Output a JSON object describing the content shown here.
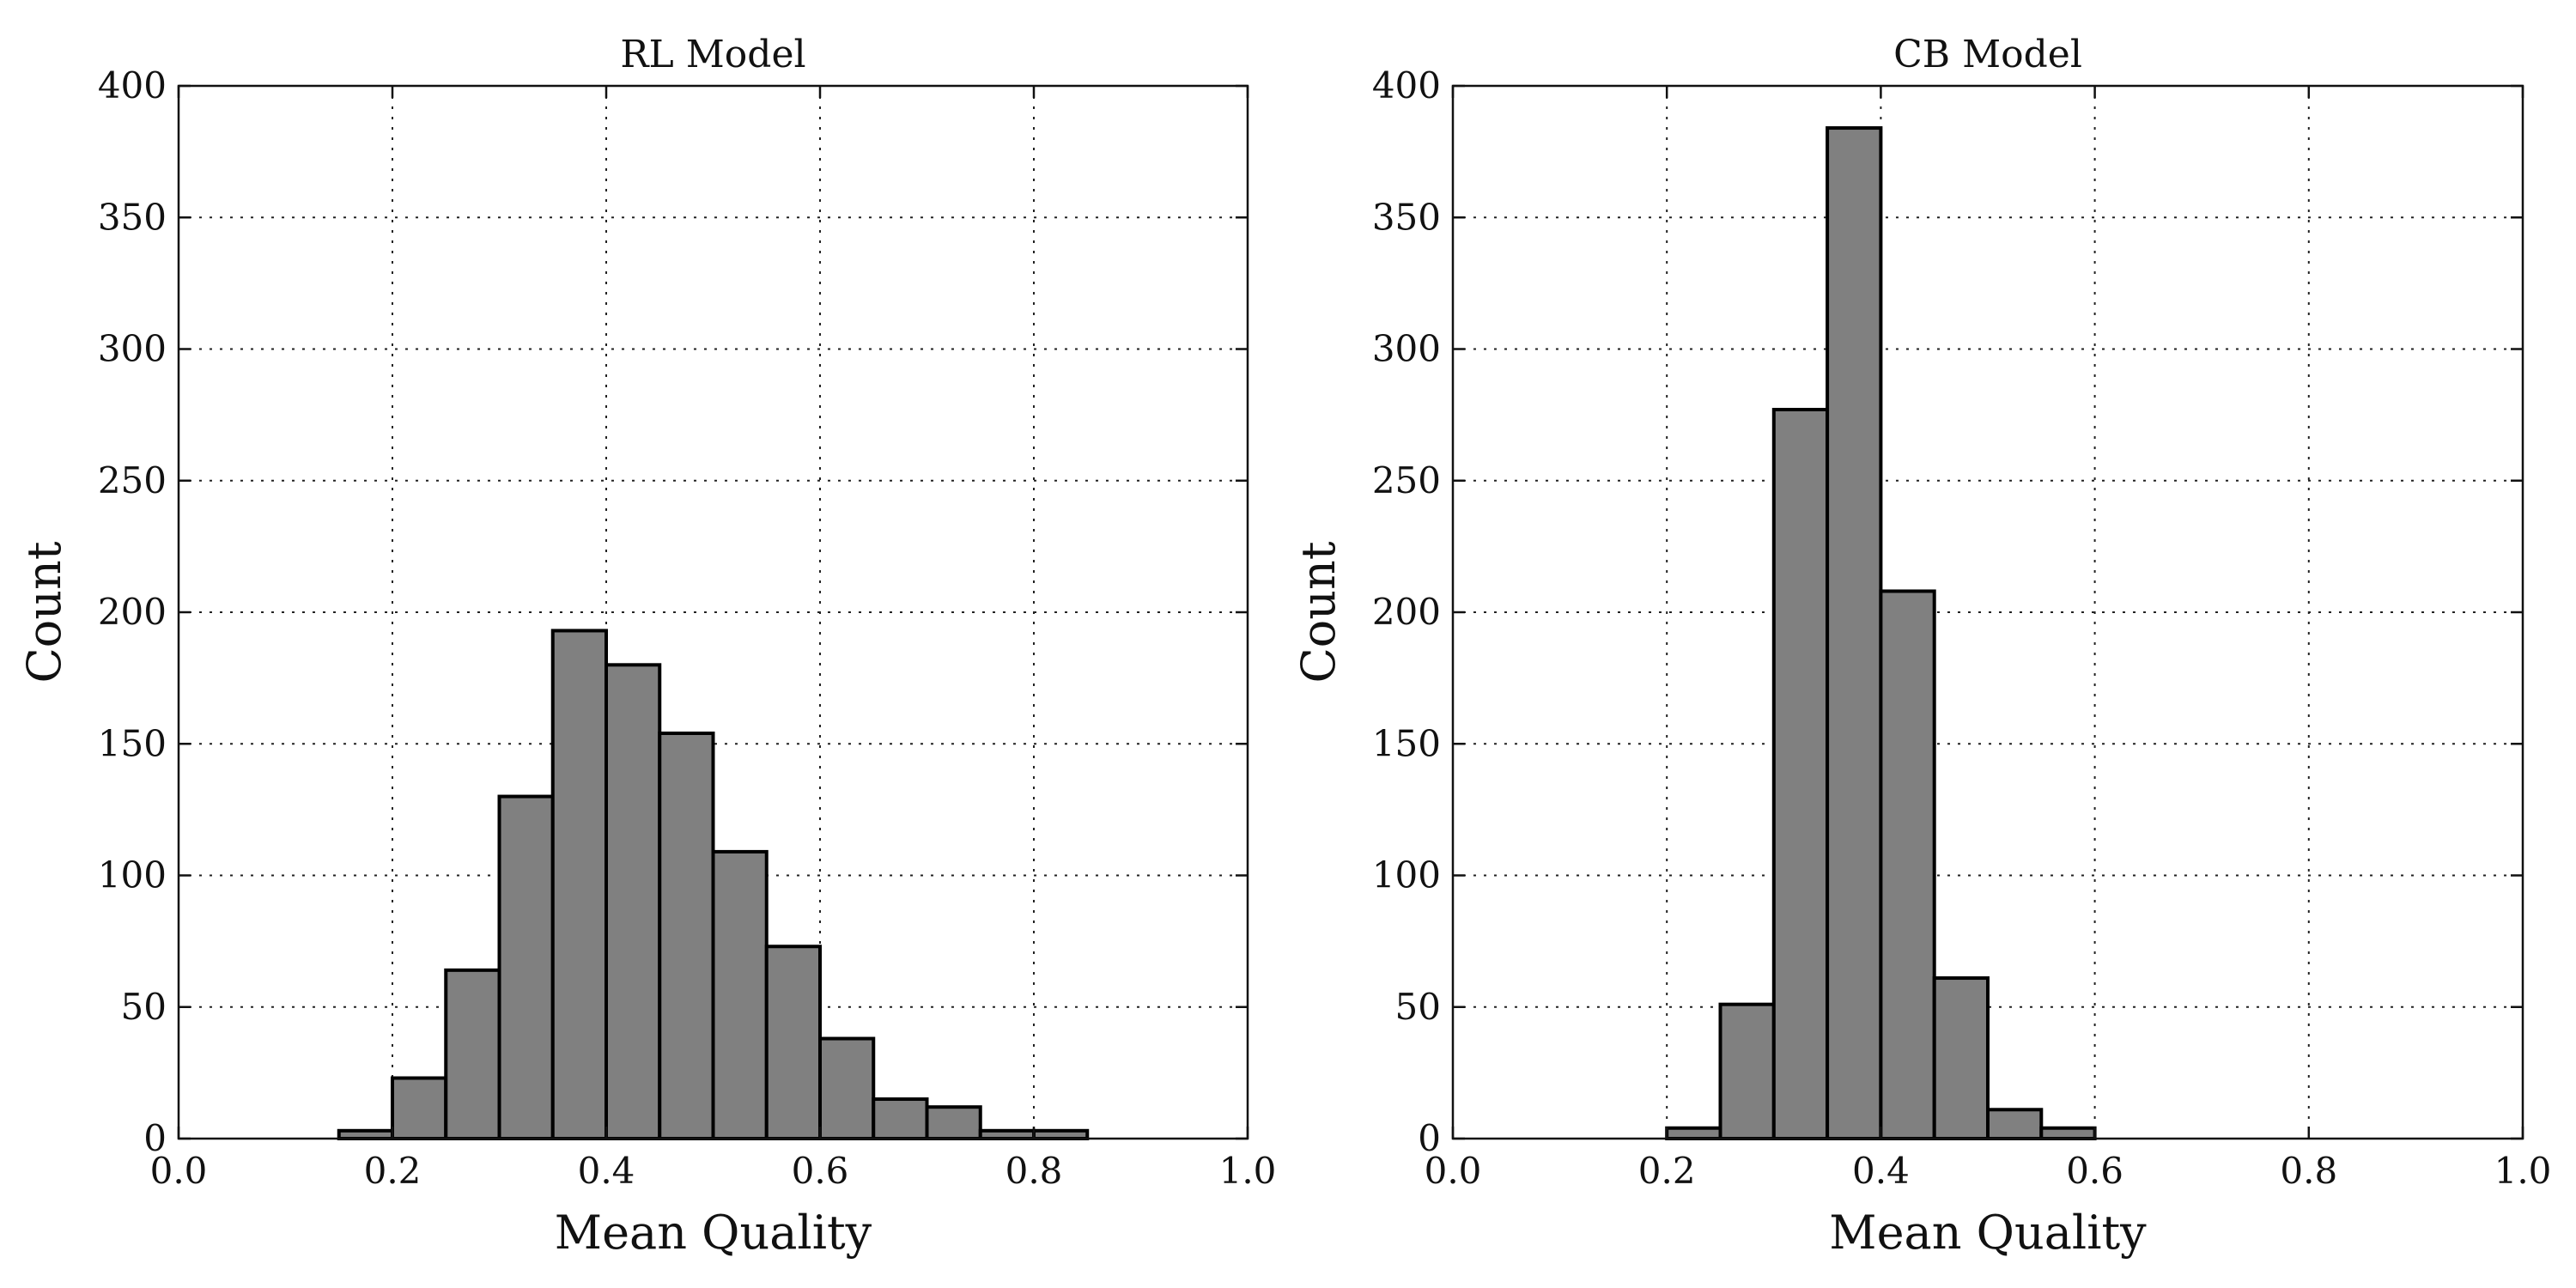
{
  "chart_data": [
    {
      "type": "bar",
      "title": "RL Model",
      "xlabel": "Mean Quality",
      "ylabel": "Count",
      "xlim": [
        0.0,
        1.0
      ],
      "ylim": [
        0,
        400
      ],
      "xticks": [
        "0.0",
        "0.2",
        "0.4",
        "0.6",
        "0.8",
        "1.0"
      ],
      "yticks": [
        "0",
        "50",
        "100",
        "150",
        "200",
        "250",
        "300",
        "350",
        "400"
      ],
      "grid": true,
      "bins": [
        {
          "x0": 0.15,
          "x1": 0.2,
          "count": 3
        },
        {
          "x0": 0.2,
          "x1": 0.25,
          "count": 23
        },
        {
          "x0": 0.25,
          "x1": 0.3,
          "count": 64
        },
        {
          "x0": 0.3,
          "x1": 0.35,
          "count": 130
        },
        {
          "x0": 0.35,
          "x1": 0.4,
          "count": 193
        },
        {
          "x0": 0.4,
          "x1": 0.45,
          "count": 180
        },
        {
          "x0": 0.45,
          "x1": 0.5,
          "count": 154
        },
        {
          "x0": 0.5,
          "x1": 0.55,
          "count": 109
        },
        {
          "x0": 0.55,
          "x1": 0.6,
          "count": 73
        },
        {
          "x0": 0.6,
          "x1": 0.65,
          "count": 38
        },
        {
          "x0": 0.65,
          "x1": 0.7,
          "count": 15
        },
        {
          "x0": 0.7,
          "x1": 0.75,
          "count": 12
        },
        {
          "x0": 0.75,
          "x1": 0.8,
          "count": 3
        },
        {
          "x0": 0.8,
          "x1": 0.85,
          "count": 3
        }
      ]
    },
    {
      "type": "bar",
      "title": "CB Model",
      "xlabel": "Mean Quality",
      "ylabel": "Count",
      "xlim": [
        0.0,
        1.0
      ],
      "ylim": [
        0,
        400
      ],
      "xticks": [
        "0.0",
        "0.2",
        "0.4",
        "0.6",
        "0.8",
        "1.0"
      ],
      "yticks": [
        "0",
        "50",
        "100",
        "150",
        "200",
        "250",
        "300",
        "350",
        "400"
      ],
      "grid": true,
      "bins": [
        {
          "x0": 0.2,
          "x1": 0.25,
          "count": 4
        },
        {
          "x0": 0.25,
          "x1": 0.3,
          "count": 51
        },
        {
          "x0": 0.3,
          "x1": 0.35,
          "count": 277
        },
        {
          "x0": 0.35,
          "x1": 0.4,
          "count": 384
        },
        {
          "x0": 0.4,
          "x1": 0.45,
          "count": 208
        },
        {
          "x0": 0.45,
          "x1": 0.5,
          "count": 61
        },
        {
          "x0": 0.5,
          "x1": 0.55,
          "count": 11
        },
        {
          "x0": 0.55,
          "x1": 0.6,
          "count": 4
        }
      ]
    }
  ]
}
